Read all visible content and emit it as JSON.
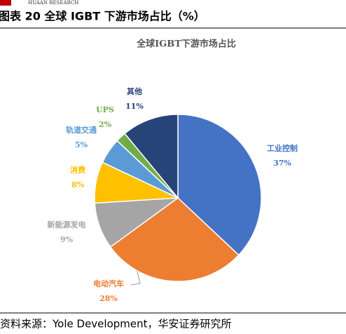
{
  "header": {
    "brand": "HUAAN RESEARCH"
  },
  "caption": "图表 20 全球 IGBT 下游市场占比（%）",
  "source": "资料来源：Yole Development，华安证券研究所",
  "chart_data": {
    "type": "pie",
    "title": "全球IGBT下游市场占比",
    "categories": [
      "工业控制",
      "电动汽车",
      "新能源发电",
      "消费",
      "轨道交通",
      "UPS",
      "其他"
    ],
    "values": [
      37,
      28,
      9,
      8,
      5,
      2,
      11
    ],
    "value_labels": [
      "37%",
      "28%",
      "9%",
      "8%",
      "5%",
      "2%",
      "11%"
    ],
    "colors": [
      "#4472c4",
      "#ed7d31",
      "#a5a5a5",
      "#ffc000",
      "#5b9bd5",
      "#70ad47",
      "#264478"
    ]
  }
}
